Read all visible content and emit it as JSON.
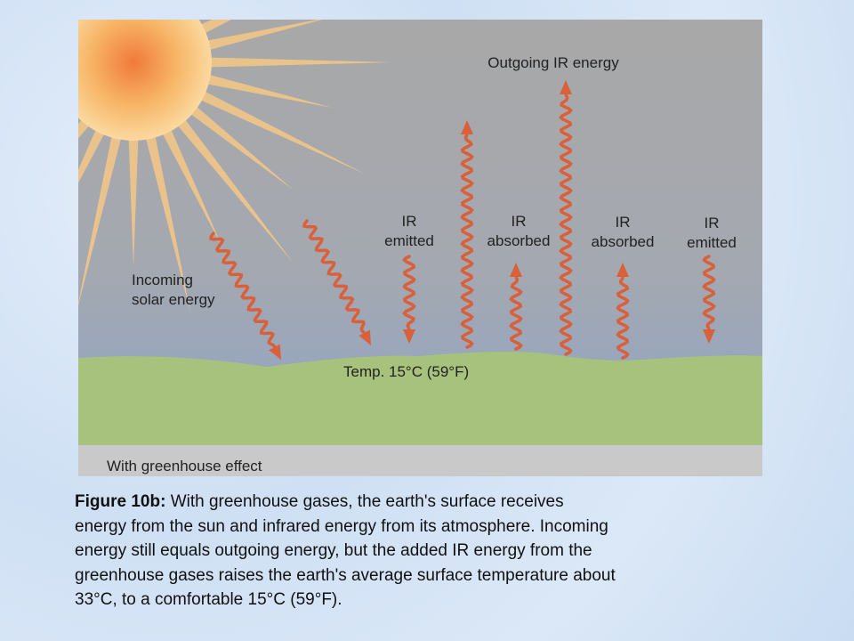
{
  "diagram": {
    "labels": {
      "outgoing": "Outgoing IR energy",
      "ir_1": [
        "IR",
        "emitted"
      ],
      "ir_2": [
        "IR",
        "absorbed"
      ],
      "ir_3": [
        "IR",
        "absorbed"
      ],
      "ir_4": [
        "IR",
        "emitted"
      ],
      "incoming": [
        "Incoming",
        "solar energy"
      ],
      "temperature": "Temp. 15°C (59°F)",
      "footer": "With greenhouse effect"
    },
    "caption": {
      "label": "Figure 10b:",
      "lines": [
        "With greenhouse gases, the earth's surface receives",
        "energy from the sun and infrared energy from its atmosphere. Incoming",
        "energy still equals outgoing energy, but the added IR energy from the",
        "greenhouse gases raises the earth's average surface temperature about",
        "33°C, to a comfortable 15°C (59°F)."
      ]
    }
  }
}
